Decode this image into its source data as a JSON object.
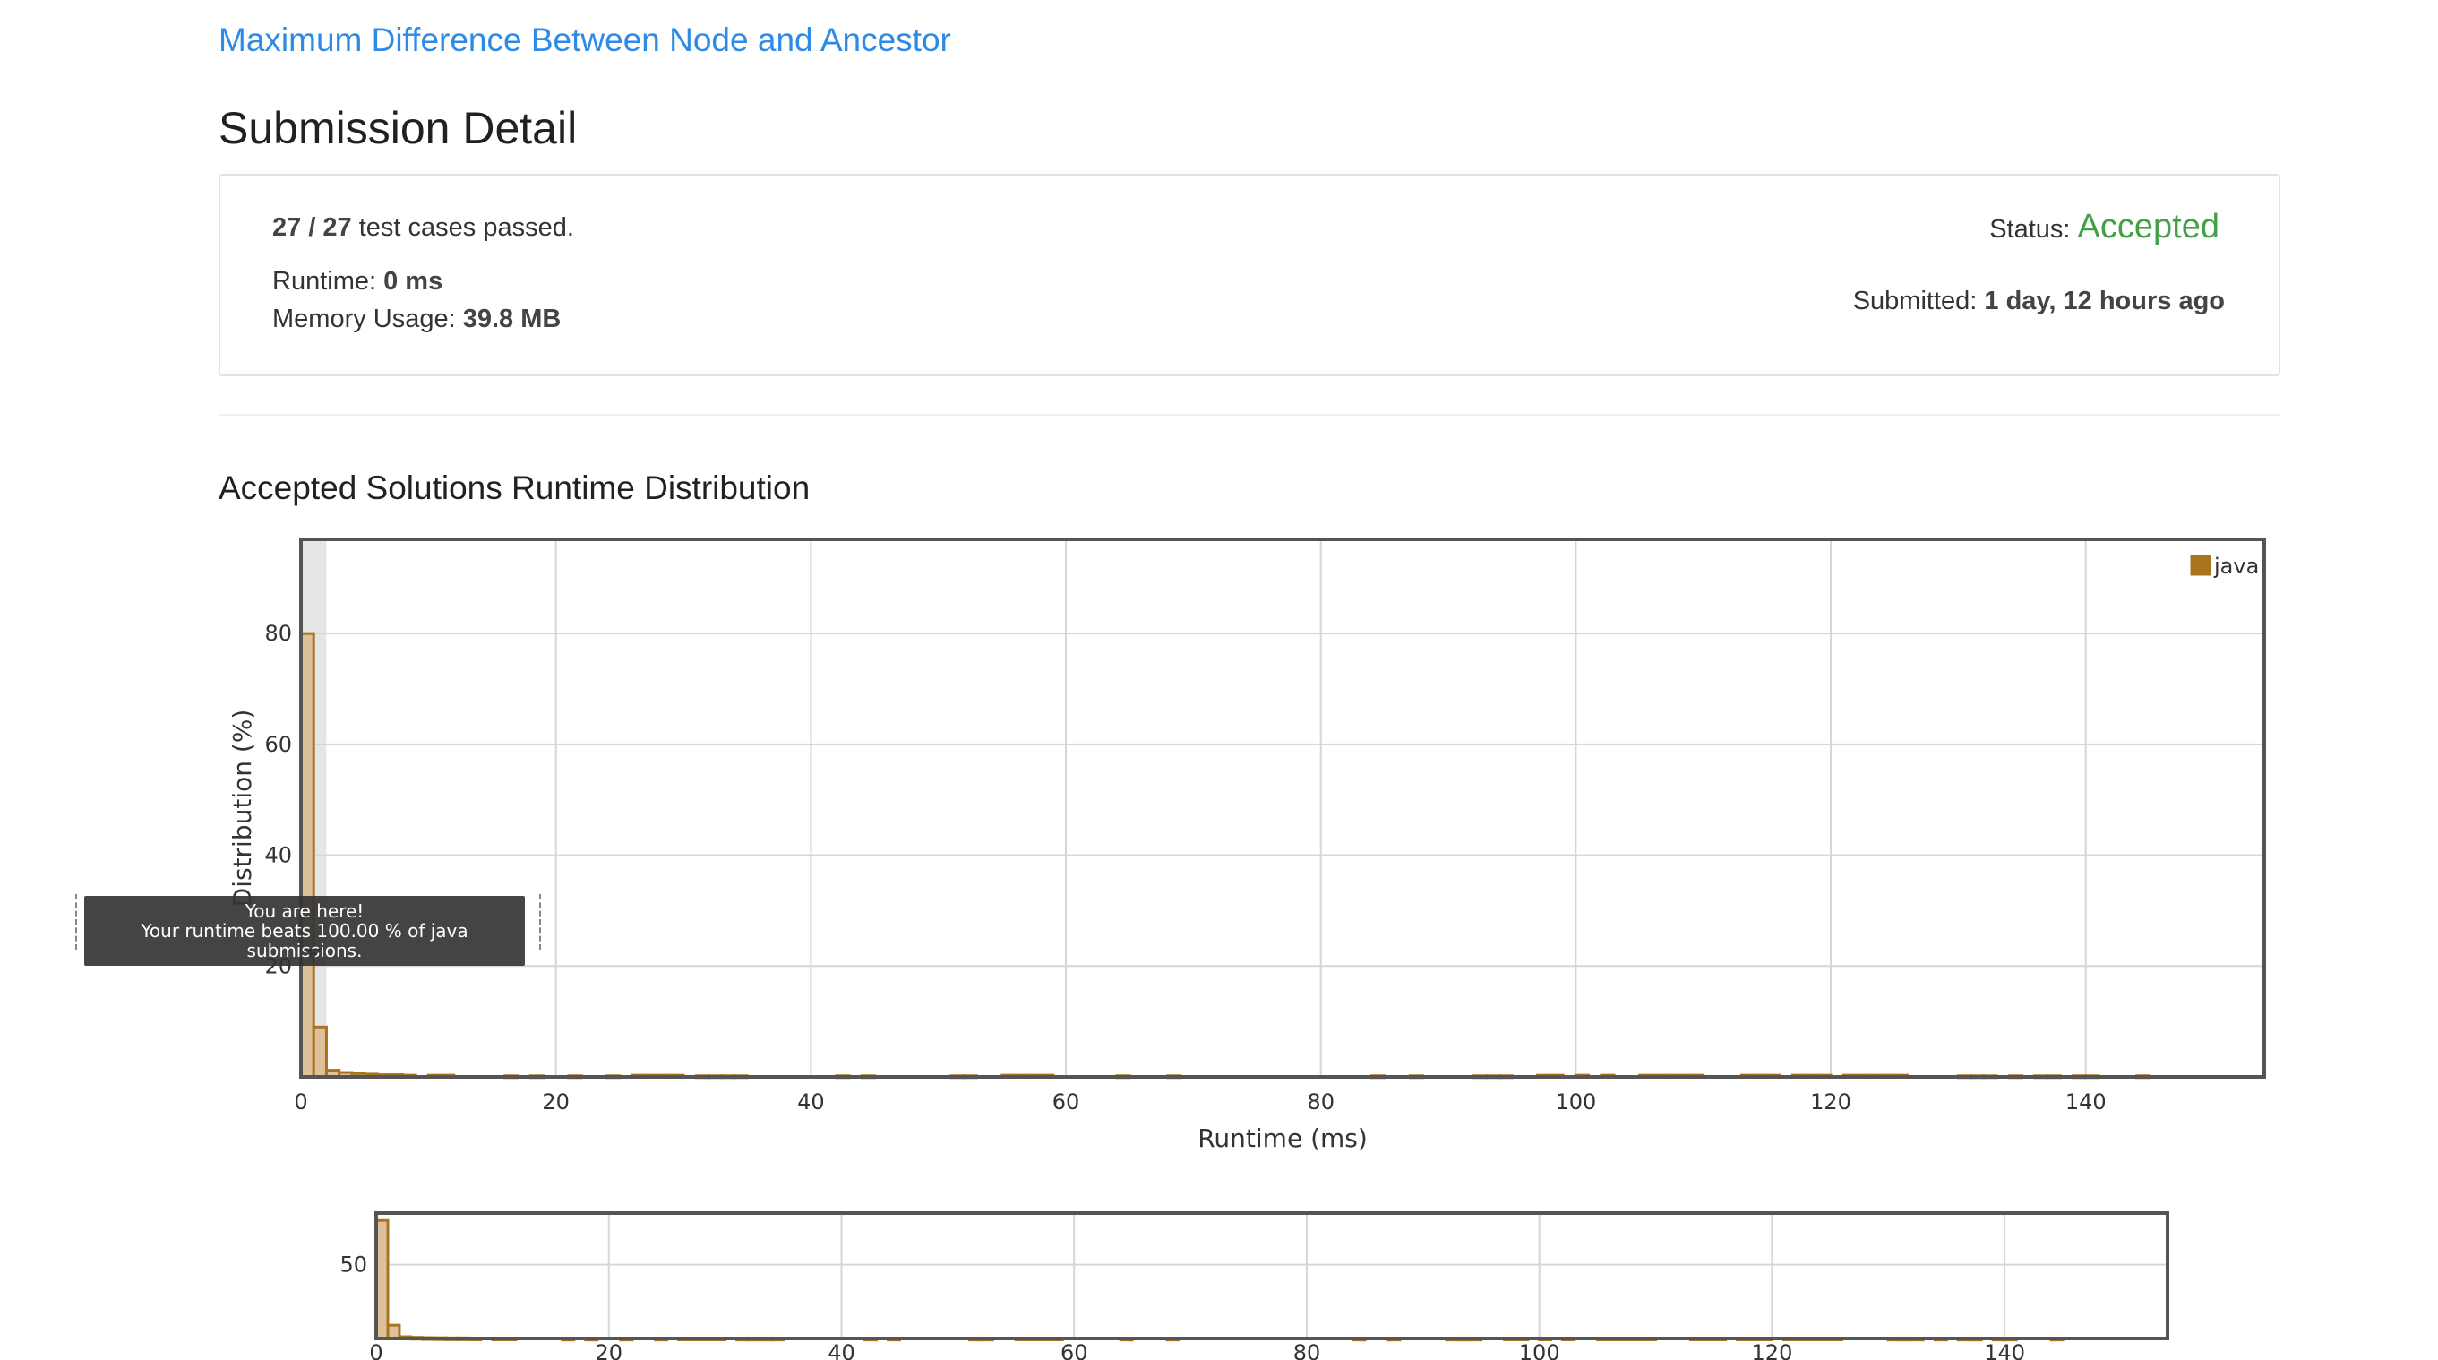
{
  "problem": {
    "title": "Maximum Difference Between Node and Ancestor"
  },
  "page": {
    "title": "Submission Detail"
  },
  "detail": {
    "passed_count": "27 / 27",
    "passed_suffix": "test cases passed.",
    "runtime_label": "Runtime:",
    "runtime_value": "0 ms",
    "memory_label": "Memory Usage:",
    "memory_value": "39.8 MB",
    "status_label": "Status:",
    "status_value": "Accepted",
    "submitted_label": "Submitted:",
    "submitted_value": "1 day, 12 hours ago"
  },
  "distribution": {
    "section_title": "Accepted Solutions Runtime Distribution"
  },
  "tooltip": {
    "line1": "You are here!",
    "line2": "Your runtime beats 100.00 % of java submissions."
  },
  "colors": {
    "link": "#2d8ae6",
    "accepted": "#43a047",
    "bar_fill": "#dcc19a",
    "bar_stroke": "#a9741f",
    "legend": "#a9741f",
    "highlight_band": "#e6e6e6"
  },
  "chart_data": [
    {
      "type": "bar",
      "name": "main",
      "xlabel": "Runtime (ms)",
      "ylabel": "Distribution (%)",
      "xlim": [
        0,
        154
      ],
      "ylim": [
        0,
        97
      ],
      "xticks": [
        0,
        20,
        40,
        60,
        80,
        100,
        120,
        140
      ],
      "yticks": [
        20,
        40,
        60,
        80
      ],
      "bin_width": 1,
      "highlight_bin": [
        0,
        2
      ],
      "legend": {
        "label": "java",
        "position": "top-right"
      },
      "grid": true,
      "series": [
        {
          "name": "java",
          "x": [
            0,
            1,
            2,
            3,
            4,
            5,
            6,
            7,
            8,
            10,
            11,
            16,
            18,
            21,
            24,
            26,
            27,
            28,
            29,
            31,
            32,
            33,
            34,
            42,
            44,
            51,
            52,
            55,
            56,
            57,
            58,
            64,
            68,
            84,
            87,
            92,
            93,
            94,
            97,
            98,
            100,
            102,
            105,
            106,
            107,
            108,
            109,
            113,
            114,
            115,
            117,
            118,
            119,
            121,
            122,
            123,
            124,
            125,
            130,
            131,
            132,
            134,
            136,
            137,
            139,
            140,
            144
          ],
          "values": [
            80.0,
            9.0,
            1.2,
            0.8,
            0.6,
            0.5,
            0.4,
            0.4,
            0.3,
            0.3,
            0.3,
            0.2,
            0.2,
            0.2,
            0.2,
            0.3,
            0.3,
            0.3,
            0.3,
            0.2,
            0.2,
            0.2,
            0.2,
            0.2,
            0.2,
            0.2,
            0.2,
            0.3,
            0.3,
            0.3,
            0.3,
            0.2,
            0.2,
            0.2,
            0.2,
            0.2,
            0.2,
            0.2,
            0.3,
            0.3,
            0.3,
            0.3,
            0.3,
            0.3,
            0.3,
            0.3,
            0.3,
            0.3,
            0.3,
            0.3,
            0.3,
            0.3,
            0.3,
            0.3,
            0.3,
            0.3,
            0.3,
            0.3,
            0.2,
            0.2,
            0.2,
            0.2,
            0.2,
            0.2,
            0.2,
            0.2,
            0.2
          ]
        }
      ]
    },
    {
      "type": "bar",
      "name": "navigator",
      "xlim": [
        0,
        154
      ],
      "ylim": [
        0,
        85
      ],
      "xticks": [
        0,
        20,
        40,
        60,
        80,
        100,
        120,
        140
      ],
      "yticks": [
        50
      ],
      "grid": true,
      "series_ref": "main"
    }
  ]
}
